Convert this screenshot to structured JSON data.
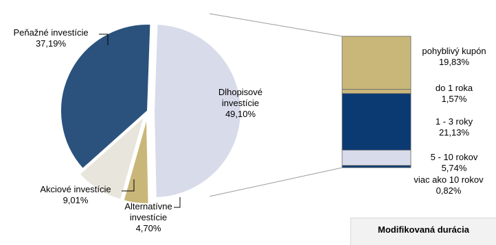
{
  "chart_data": [
    {
      "type": "pie",
      "slices": [
        {
          "label": "Dlhopisové investície",
          "value": 49.1,
          "value_text": "49,10%",
          "color": "#d8dbea",
          "exploded": true
        },
        {
          "label": "Alternatívne investície",
          "value": 4.7,
          "value_text": "4,70%",
          "color": "#c9b77a",
          "exploded": true
        },
        {
          "label": "Akciové investície",
          "value": 9.01,
          "value_text": "9,01%",
          "color": "#e8e5dd",
          "exploded": true
        },
        {
          "label": "Peňažné investície",
          "value": 37.19,
          "value_text": "37,19%",
          "color": "#2b527d",
          "exploded": false
        }
      ]
    },
    {
      "type": "bar",
      "stacked": true,
      "orientation": "vertical",
      "breakdown_of": "Dlhopisové investície",
      "segments": [
        {
          "label": "pohyblivý kupón",
          "value": 19.83,
          "value_text": "19,83%",
          "color": "#c9b77a"
        },
        {
          "label": "do 1 roka",
          "value": 1.57,
          "value_text": "1,57%",
          "color": "#c9b77a"
        },
        {
          "label": "1 - 3 roky",
          "value": 21.13,
          "value_text": "21,13%",
          "color": "#0b3a72"
        },
        {
          "label": "5 - 10 rokov",
          "value": 5.74,
          "value_text": "5,74%",
          "color": "#d8dbea"
        },
        {
          "label": "viac ako 10 rokov",
          "value": 0.82,
          "value_text": "0,82%",
          "color": "#0b3a72"
        }
      ]
    }
  ],
  "info_box": {
    "title": "Modifikovaná durácia"
  },
  "colors": {
    "slice_border": "#ffffff",
    "bar_border": "#666666",
    "connector": "#9a9a9a"
  }
}
